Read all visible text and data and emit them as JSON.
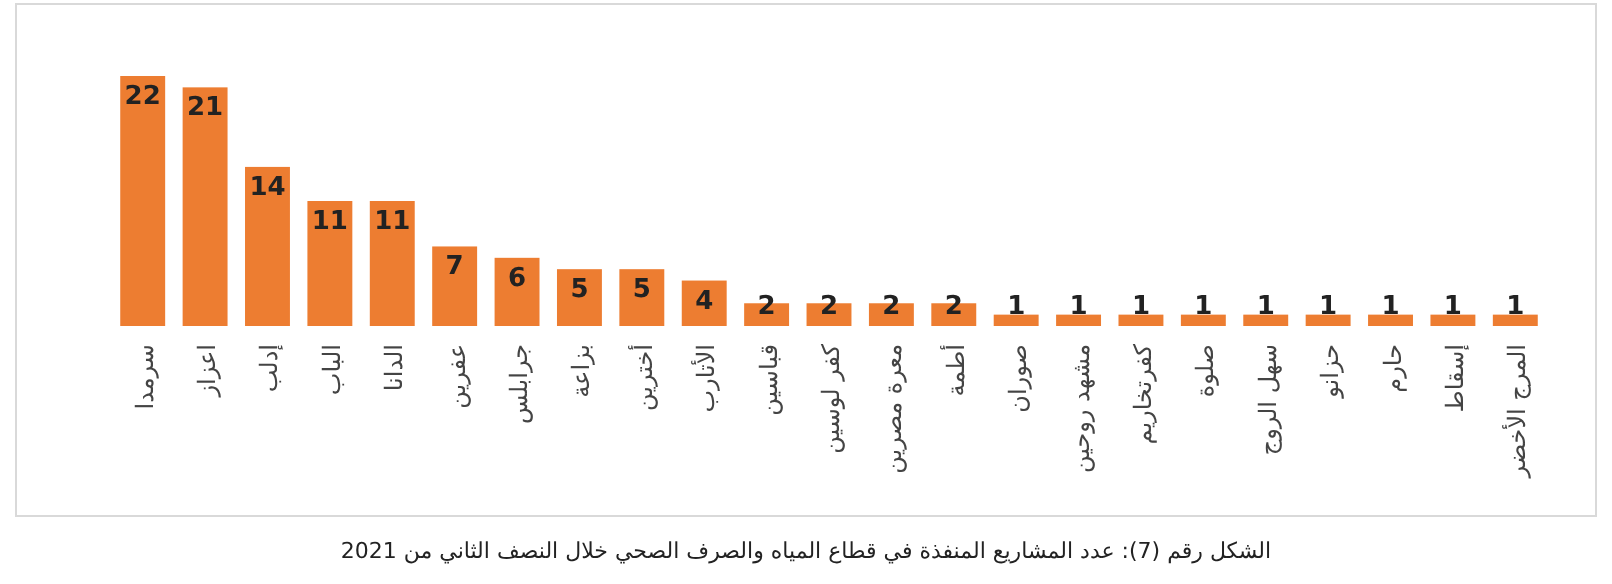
{
  "chart_data": {
    "type": "bar",
    "title": "الشكل رقم (7): عدد المشاريع المنفذة في قطاع المياه والصرف الصحي خلال النصف الثاني من 2021",
    "categories": [
      "سرمدا",
      "اعزاز",
      "إدلب",
      "الباب",
      "الدانا",
      "عفرين",
      "جرابلس",
      "بزاعة",
      "أخترين",
      "الأتارب",
      "قباسين",
      "كفر لوسين",
      "معرة مصرين",
      "أطمة",
      "صوران",
      "مشهد روحين",
      "كفرتخاريم",
      "صلوة",
      "سهل الروج",
      "حزانو",
      "حارم",
      "إسقاط",
      "المرج الأخضر"
    ],
    "values": [
      22,
      21,
      14,
      11,
      11,
      7,
      6,
      5,
      5,
      4,
      2,
      2,
      2,
      2,
      1,
      1,
      1,
      1,
      1,
      1,
      1,
      1,
      1
    ],
    "color": "#ed7d31",
    "data_labels": true
  }
}
